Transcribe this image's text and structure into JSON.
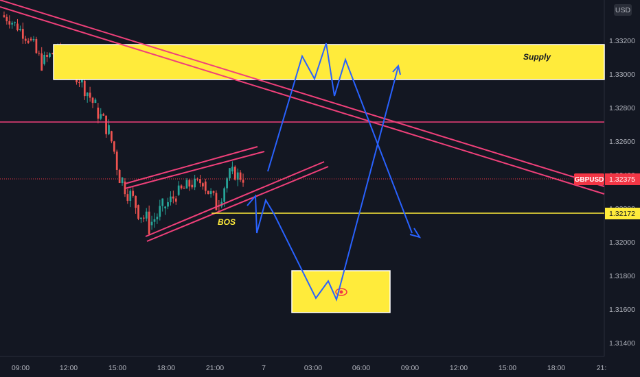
{
  "chart_data": {
    "type": "candlestick",
    "currency": "USD",
    "symbol": "GBPUSD",
    "price_axis": {
      "ticks": [
        "1.32400",
        "1.32200",
        "1.32000",
        "1.31800",
        "1.31600",
        "1.31400",
        "1.33200",
        "1.33000",
        "1.32800",
        "1.32600"
      ],
      "tick_values": [
        1.324,
        1.322,
        1.32,
        1.318,
        1.316,
        1.314,
        1.332,
        1.33,
        1.328,
        1.326
      ],
      "range": [
        1.313,
        1.3345
      ]
    },
    "time_axis": {
      "labels": [
        "09:00",
        "12:00",
        "15:00",
        "18:00",
        "21:00",
        "7",
        "03:00",
        "06:00",
        "09:00",
        "12:00",
        "15:00",
        "18:00",
        "21:"
      ]
    },
    "current_price": {
      "label": "1.32375",
      "value": 1.32375
    },
    "bos_level": {
      "label": "1.32172",
      "value": 1.32172
    },
    "annotations": {
      "supply": "Supply",
      "bos": "BOS"
    },
    "colors": {
      "background": "#131722",
      "up": "#26a69a",
      "down": "#ef5350",
      "trendline": "#f0407a",
      "zone": "#ffeb3b",
      "projection": "#2962ff",
      "bos_line": "#ffeb3b",
      "price_tag": "#f23645"
    },
    "candles_ohlc_hourly_approx": [
      {
        "o": 1.3335,
        "h": 1.3339,
        "l": 1.3327,
        "c": 1.333
      },
      {
        "o": 1.333,
        "h": 1.3334,
        "l": 1.3318,
        "c": 1.3321
      },
      {
        "o": 1.3321,
        "h": 1.3326,
        "l": 1.3302,
        "c": 1.3306
      },
      {
        "o": 1.3306,
        "h": 1.3318,
        "l": 1.3298,
        "c": 1.3314
      },
      {
        "o": 1.3314,
        "h": 1.3322,
        "l": 1.3304,
        "c": 1.3308
      },
      {
        "o": 1.3308,
        "h": 1.3316,
        "l": 1.3292,
        "c": 1.3296
      },
      {
        "o": 1.3296,
        "h": 1.33,
        "l": 1.3276,
        "c": 1.328
      },
      {
        "o": 1.328,
        "h": 1.3284,
        "l": 1.3262,
        "c": 1.3266
      },
      {
        "o": 1.3266,
        "h": 1.327,
        "l": 1.3232,
        "c": 1.3236
      },
      {
        "o": 1.3236,
        "h": 1.324,
        "l": 1.3216,
        "c": 1.3222
      },
      {
        "o": 1.3222,
        "h": 1.3232,
        "l": 1.3204,
        "c": 1.321
      },
      {
        "o": 1.321,
        "h": 1.3226,
        "l": 1.3202,
        "c": 1.322
      },
      {
        "o": 1.322,
        "h": 1.3232,
        "l": 1.3214,
        "c": 1.3228
      },
      {
        "o": 1.3228,
        "h": 1.3238,
        "l": 1.322,
        "c": 1.3234
      },
      {
        "o": 1.3234,
        "h": 1.324,
        "l": 1.3226,
        "c": 1.3236
      },
      {
        "o": 1.3236,
        "h": 1.324,
        "l": 1.3218,
        "c": 1.3222
      },
      {
        "o": 1.3222,
        "h": 1.3244,
        "l": 1.3218,
        "c": 1.3242
      },
      {
        "o": 1.3242,
        "h": 1.3248,
        "l": 1.3232,
        "c": 1.3238
      }
    ]
  }
}
